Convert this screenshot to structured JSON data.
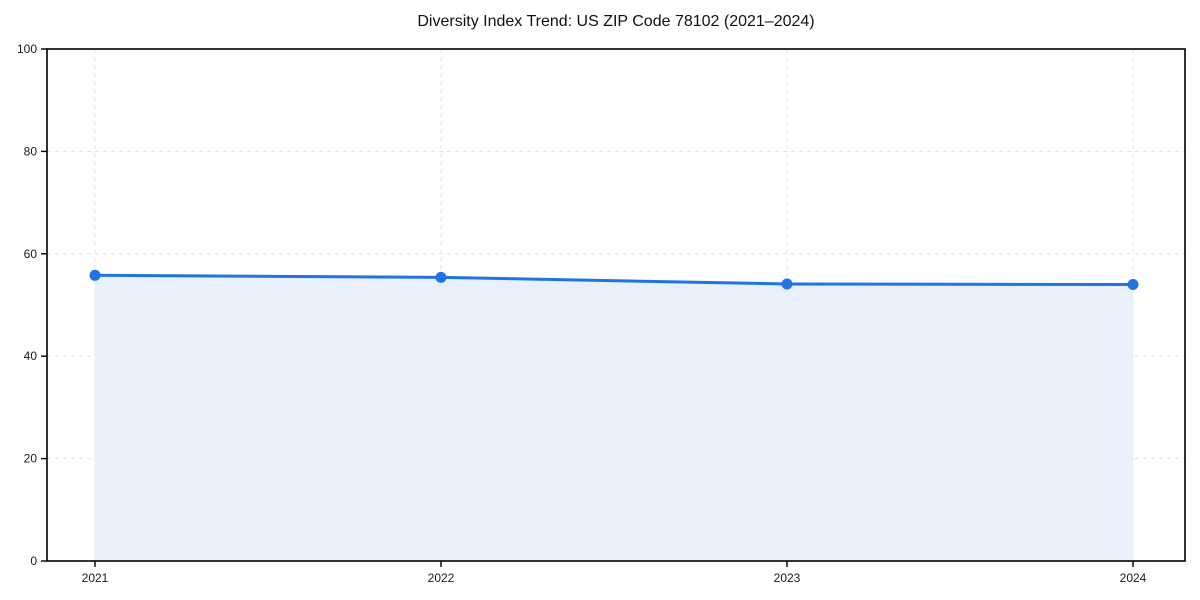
{
  "page": {
    "background": "#ffffff"
  },
  "chart_data": {
    "type": "area",
    "title": "Diversity Index Trend: US ZIP Code 78102 (2021–2024)",
    "categories": [
      "2021",
      "2022",
      "2023",
      "2024"
    ],
    "values": [
      55.8,
      55.4,
      54.1,
      54.0
    ],
    "xlabel": "",
    "ylabel": "",
    "ylim": [
      0,
      100
    ],
    "yticks": [
      0,
      20,
      40,
      60,
      80,
      100
    ],
    "grid": true,
    "grid_style": "dashed",
    "legend": false,
    "colors": {
      "line": "#2273e2",
      "fill": "#e8f0fb",
      "marker": "#2273e2",
      "axis": "#000000",
      "grid": "#e0e0e0",
      "tick_label": "#1a1a1a"
    }
  }
}
